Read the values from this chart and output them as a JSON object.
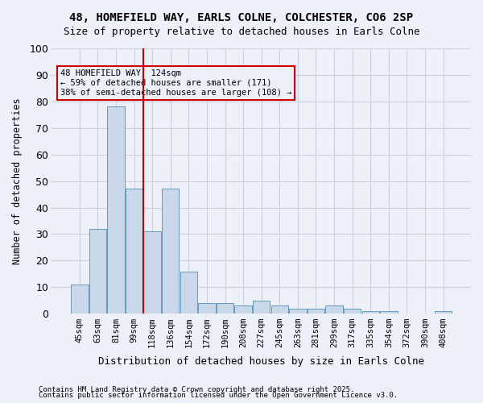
{
  "title1": "48, HOMEFIELD WAY, EARLS COLNE, COLCHESTER, CO6 2SP",
  "title2": "Size of property relative to detached houses in Earls Colne",
  "xlabel": "Distribution of detached houses by size in Earls Colne",
  "ylabel": "Number of detached properties",
  "categories": [
    "45sqm",
    "63sqm",
    "81sqm",
    "99sqm",
    "118sqm",
    "136sqm",
    "154sqm",
    "172sqm",
    "190sqm",
    "208sqm",
    "227sqm",
    "245sqm",
    "263sqm",
    "281sqm",
    "299sqm",
    "317sqm",
    "335sqm",
    "354sqm",
    "372sqm",
    "390sqm",
    "408sqm"
  ],
  "values": [
    11,
    32,
    78,
    47,
    31,
    47,
    16,
    4,
    4,
    3,
    5,
    3,
    2,
    2,
    3,
    2,
    1,
    1,
    0,
    0,
    1
  ],
  "bar_color": "#c8d8e8",
  "bar_edge_color": "#6699bb",
  "grid_color": "#c8d0e0",
  "bg_color": "#eef0f8",
  "vline_x_index": 3.5,
  "vline_color": "#cc0000",
  "annotation_text": "48 HOMEFIELD WAY: 124sqm\n← 59% of detached houses are smaller (171)\n38% of semi-detached houses are larger (108) →",
  "annotation_box_color": "#cc0000",
  "footer1": "Contains HM Land Registry data © Crown copyright and database right 2025.",
  "footer2": "Contains public sector information licensed under the Open Government Licence v3.0.",
  "ylim": [
    0,
    100
  ]
}
